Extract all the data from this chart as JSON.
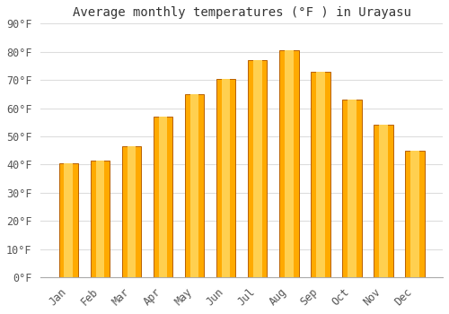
{
  "title": "Average monthly temperatures (°F ) in Urayasu",
  "months": [
    "Jan",
    "Feb",
    "Mar",
    "Apr",
    "May",
    "Jun",
    "Jul",
    "Aug",
    "Sep",
    "Oct",
    "Nov",
    "Dec"
  ],
  "values": [
    40.5,
    41.5,
    46.5,
    57,
    65,
    70.5,
    77,
    80.5,
    73,
    63,
    54,
    45
  ],
  "bar_color_main": "#FFAA00",
  "bar_color_light": "#FFD050",
  "bar_color_dark": "#E08000",
  "bar_edge_color": "#B86000",
  "ylim": [
    0,
    90
  ],
  "yticks": [
    0,
    10,
    20,
    30,
    40,
    50,
    60,
    70,
    80,
    90
  ],
  "background_color": "#FFFFFF",
  "grid_color": "#DDDDDD",
  "title_fontsize": 10,
  "tick_fontsize": 8.5
}
